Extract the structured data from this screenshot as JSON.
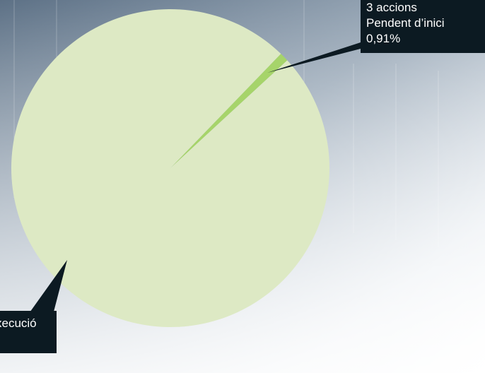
{
  "chart_data": {
    "type": "pie",
    "categories": [
      "Pendent d’inici",
      "xecució"
    ],
    "values": [
      0.91,
      99.09
    ],
    "value_labels": [
      "0,91%",
      null
    ],
    "colors": [
      "#a6d46a",
      "#dde9c4"
    ],
    "annotations": [
      "3 accions"
    ]
  }
}
